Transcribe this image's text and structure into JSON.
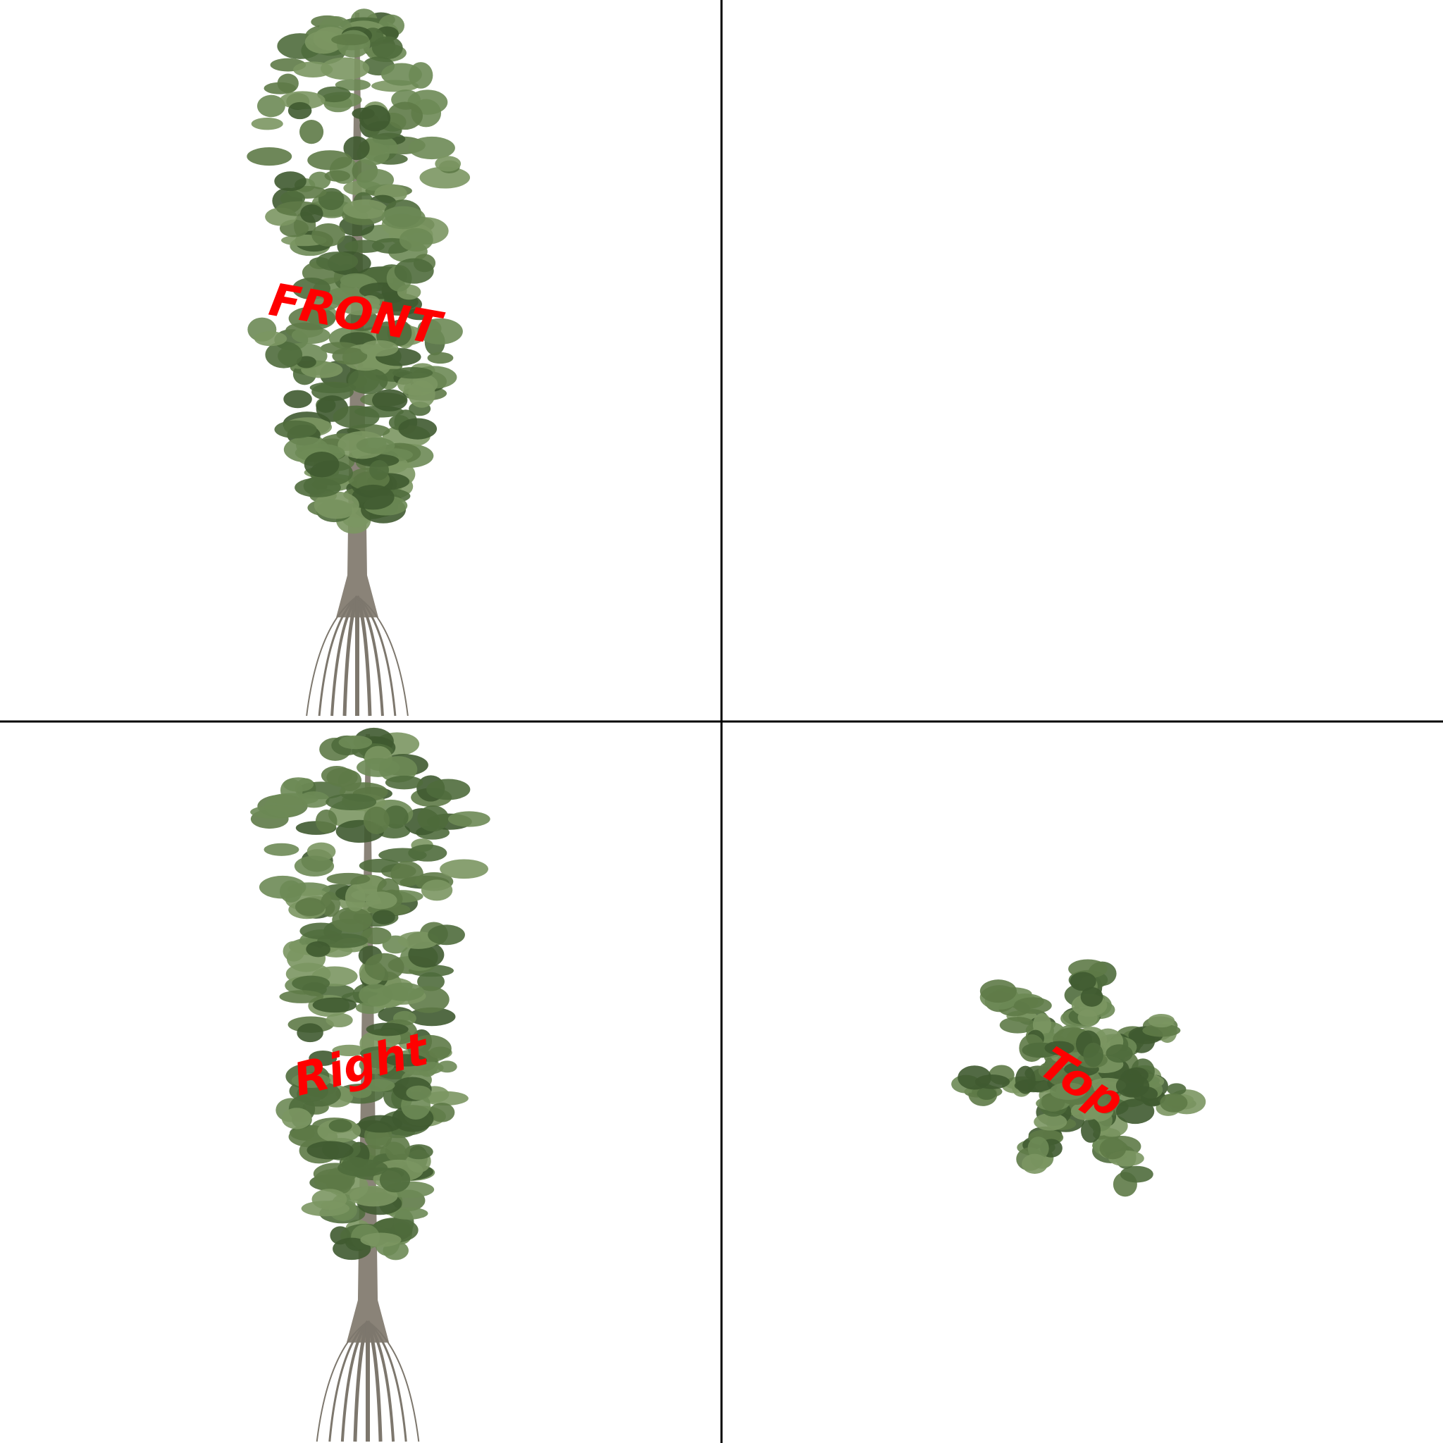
{
  "views": {
    "front": {
      "label": "FRONT"
    },
    "right": {
      "label": "Right"
    },
    "top": {
      "label": "Top"
    }
  }
}
